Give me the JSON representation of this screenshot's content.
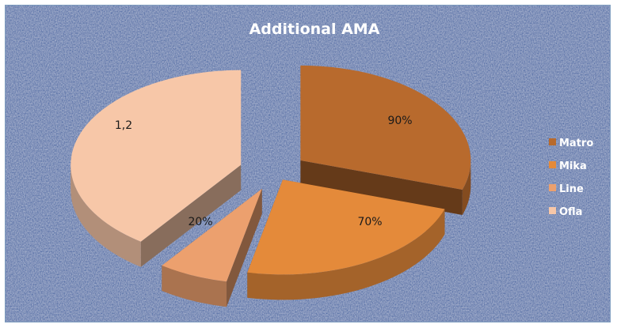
{
  "chart_data": {
    "type": "pie",
    "title": "Additional AMA",
    "style": "3d-exploded",
    "legend_position": "right",
    "categories": [
      "Matro",
      "Mika",
      "Line",
      "Ofla"
    ],
    "values": [
      0.9,
      0.7,
      0.2,
      1.2
    ],
    "data_labels": [
      "90%",
      "70%",
      "20%",
      "1,2"
    ],
    "colors": [
      "#B86A2D",
      "#E48A3A",
      "#ECA06E",
      "#F7C7A8"
    ],
    "background_color": "#3f62a0"
  }
}
